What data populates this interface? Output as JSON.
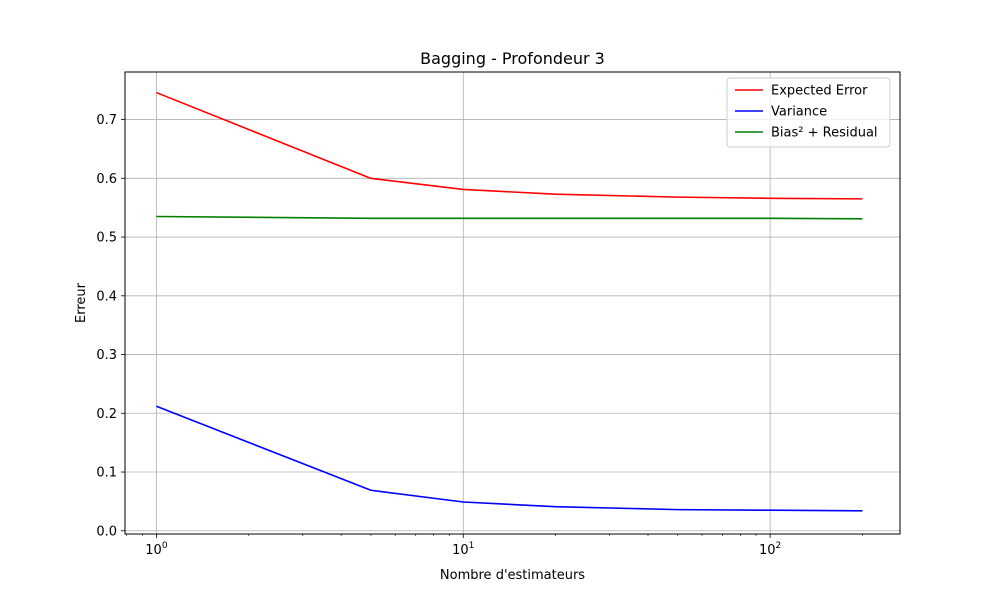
{
  "chart_data": {
    "type": "line",
    "title": "Bagging - Profondeur 3",
    "xlabel": "Nombre d'estimateurs",
    "ylabel": "Erreur",
    "xscale": "log",
    "xlim": [
      0.79,
      265
    ],
    "ylim": [
      -0.0055,
      0.781
    ],
    "grid": true,
    "legend_position": "top-right",
    "x": [
      1,
      5,
      10,
      20,
      50,
      100,
      200
    ],
    "x_ticks": [
      {
        "value": 1,
        "base": "10",
        "exp": "0"
      },
      {
        "value": 10,
        "base": "10",
        "exp": "1"
      },
      {
        "value": 100,
        "base": "10",
        "exp": "2"
      }
    ],
    "y_ticks": [
      {
        "value": 0.0,
        "label": "0.0"
      },
      {
        "value": 0.1,
        "label": "0.1"
      },
      {
        "value": 0.2,
        "label": "0.2"
      },
      {
        "value": 0.3,
        "label": "0.3"
      },
      {
        "value": 0.4,
        "label": "0.4"
      },
      {
        "value": 0.5,
        "label": "0.5"
      },
      {
        "value": 0.6,
        "label": "0.6"
      },
      {
        "value": 0.7,
        "label": "0.7"
      }
    ],
    "series": [
      {
        "name": "Expected Error",
        "color": "#ff0000",
        "values": [
          0.746,
          0.6,
          0.581,
          0.573,
          0.568,
          0.566,
          0.565
        ]
      },
      {
        "name": "Variance",
        "color": "#0000ff",
        "values": [
          0.212,
          0.069,
          0.049,
          0.041,
          0.036,
          0.035,
          0.034
        ]
      },
      {
        "name": "Bias² + Residual",
        "color": "#008000",
        "values": [
          0.535,
          0.532,
          0.532,
          0.532,
          0.532,
          0.532,
          0.531
        ]
      }
    ]
  }
}
